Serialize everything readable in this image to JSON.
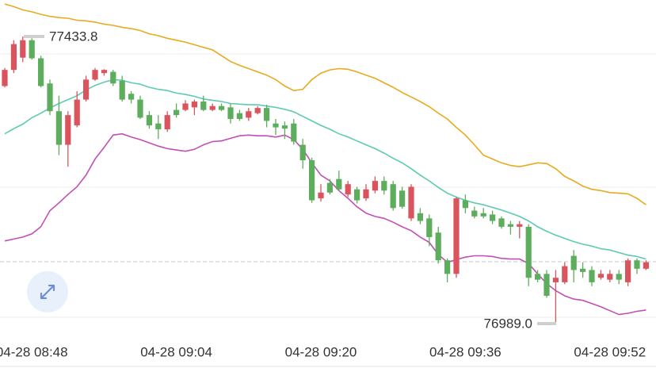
{
  "chart_data": {
    "type": "candlestick",
    "ylim": [
      76920.2,
      77490.3
    ],
    "up_color": "#d9545c",
    "down_color": "#5cad5c",
    "high_label": "77433.8",
    "low_label": "76989.0",
    "categories": [
      null,
      null,
      null,
      "04-28 08:48",
      null,
      null,
      null,
      null,
      null,
      null,
      null,
      null,
      null,
      null,
      null,
      null,
      null,
      null,
      null,
      "04-28 09:04",
      null,
      null,
      null,
      null,
      null,
      null,
      null,
      null,
      null,
      null,
      null,
      null,
      null,
      null,
      null,
      "04-28 09:20",
      null,
      null,
      null,
      null,
      null,
      null,
      null,
      null,
      null,
      null,
      null,
      null,
      null,
      null,
      null,
      "04-28 09:36",
      null,
      null,
      null,
      null,
      null,
      null,
      null,
      null,
      null,
      null,
      null,
      null,
      null,
      null,
      null,
      "04-28 09:52",
      null,
      null,
      null,
      null
    ],
    "open": [
      77357,
      77382,
      77401,
      77428,
      77400,
      77361,
      77318,
      77266,
      77296,
      77336,
      77367,
      77377,
      77379,
      77365,
      77345,
      77336,
      77312,
      77299,
      77290,
      77320,
      77320,
      77324,
      77333,
      77320,
      77326,
      77324,
      77315,
      77308,
      77315,
      77323,
      77299,
      77296,
      77299,
      77266,
      77242,
      77183,
      77207,
      77213,
      77189,
      77197,
      77183,
      77195,
      77210,
      77205,
      77195,
      77152,
      77160,
      77152,
      77130,
      77087,
      77066,
      77180,
      77164,
      77160,
      77158,
      77152,
      77143,
      77139,
      77139,
      77066,
      77066,
      77053,
      77053,
      77094,
      77074,
      77072,
      77060,
      77057,
      77066,
      77053,
      77087,
      77074
    ],
    "close": [
      77382,
      77422,
      77428,
      77400,
      77357,
      77318,
      77266,
      77312,
      77336,
      77367,
      77382,
      77382,
      77361,
      77336,
      77336,
      77308,
      77296,
      77290,
      77312,
      77312,
      77330,
      77333,
      77320,
      77326,
      77320,
      77306,
      77306,
      77318,
      77323,
      77303,
      77293,
      77291,
      77271,
      77242,
      77180,
      77192,
      77192,
      77197,
      77205,
      77180,
      77197,
      77210,
      77195,
      77168,
      77170,
      77201,
      77148,
      77123,
      77087,
      77066,
      77183,
      77168,
      77155,
      77155,
      77148,
      77139,
      77139,
      77143,
      77060,
      77057,
      77032,
      77060,
      77078,
      77072,
      77069,
      77053,
      77066,
      77066,
      77057,
      77087,
      77074,
      77084
    ],
    "high": [
      77385,
      77428,
      77433.8,
      77431,
      77404,
      77367,
      77342,
      77318,
      77349,
      77373,
      77385,
      77383,
      77382,
      77373,
      77349,
      77342,
      77318,
      77312,
      77318,
      77330,
      77335,
      77336,
      77342,
      77330,
      77330,
      77330,
      77320,
      77323,
      77326,
      77328,
      77306,
      77302,
      77306,
      77275,
      77246,
      77205,
      77213,
      77226,
      77210,
      77201,
      77205,
      77217,
      77217,
      77210,
      77201,
      77205,
      77168,
      77158,
      77139,
      77090,
      77185,
      77189,
      77170,
      77168,
      77164,
      77155,
      77148,
      77148,
      77143,
      77072,
      77072,
      77072,
      77084,
      77103,
      77084,
      77078,
      77072,
      77072,
      77072,
      77090,
      77090,
      77087
    ],
    "low": [
      77355,
      77377,
      77394,
      77398,
      77355,
      77312,
      77250,
      77232,
      77293,
      77333,
      77365,
      77373,
      77357,
      77333,
      77330,
      77306,
      77291,
      77275,
      77286,
      77308,
      77318,
      77312,
      77318,
      77318,
      77318,
      77299,
      77303,
      77303,
      77313,
      77293,
      77281,
      77275,
      77266,
      77229,
      77176,
      77178,
      77189,
      77195,
      77185,
      77175,
      77179,
      77191,
      77189,
      77164,
      77167,
      77148,
      77143,
      77109,
      77082,
      77053,
      77060,
      77160,
      77152,
      77152,
      77143,
      77136,
      77127,
      77121,
      77047,
      77053,
      77029,
      76989.0,
      77050,
      77053,
      77060,
      77047,
      77057,
      77053,
      77050,
      77047,
      77066,
      77072
    ],
    "bands": [
      {
        "color": "#e8ab1e",
        "values": [
          77484,
          77480,
          77475,
          77472,
          77468,
          77465,
          77463,
          77462,
          77459,
          77458,
          77456,
          77453,
          77451,
          77448,
          77446,
          77443,
          77438,
          77435,
          77431,
          77428,
          77425,
          77421,
          77417,
          77413,
          77404,
          77395,
          77389,
          77384,
          77379,
          77374,
          77367,
          77357,
          77350,
          77352,
          77367,
          77377,
          77382,
          77384,
          77383,
          77379,
          77374,
          77369,
          77362,
          77355,
          77347,
          77340,
          77333,
          77325,
          77315,
          77306,
          77293,
          77281,
          77266,
          77250,
          77244,
          77238,
          77234,
          77232,
          77235,
          77238,
          77237,
          77229,
          77217,
          77210,
          77202,
          77197,
          77195,
          77192,
          77191,
          77190,
          77183,
          77173
        ]
      },
      {
        "color": "#5ccbb2",
        "values": [
          77283,
          77291,
          77298,
          77308,
          77315,
          77323,
          77330,
          77336,
          77342,
          77351,
          77358,
          77363,
          77367,
          77366,
          77362,
          77360,
          77355,
          77352,
          77350,
          77346,
          77344,
          77341,
          77337,
          77335,
          77333,
          77330,
          77329,
          77328,
          77328,
          77326,
          77324,
          77321,
          77317,
          77310,
          77303,
          77296,
          77290,
          77283,
          77278,
          77272,
          77266,
          77260,
          77253,
          77245,
          77238,
          77229,
          77219,
          77210,
          77200,
          77191,
          77185,
          77180,
          77176,
          77173,
          77169,
          77165,
          77160,
          77155,
          77148,
          77139,
          77132,
          77126,
          77121,
          77116,
          77112,
          77109,
          77105,
          77103,
          77099,
          77095,
          77093,
          77089
        ]
      },
      {
        "color": "#c24fb5",
        "values": [
          77117,
          77120,
          77123,
          77128,
          77139,
          77164,
          77176,
          77189,
          77201,
          77219,
          77244,
          77262,
          77281,
          77283,
          77278,
          77274,
          77269,
          77264,
          77260,
          77258,
          77256,
          77259,
          77266,
          77271,
          77272,
          77276,
          77280,
          77281,
          77280,
          77280,
          77278,
          77281,
          77274,
          77259,
          77238,
          77219,
          77210,
          77195,
          77183,
          77170,
          77160,
          77155,
          77152,
          77146,
          77139,
          77133,
          77123,
          77115,
          77096,
          77084,
          77088,
          77092,
          77094,
          77094,
          77093,
          77090,
          77089,
          77089,
          77082,
          77066,
          77051,
          77040,
          77032,
          77027,
          77025,
          77020,
          77015,
          77009,
          77003,
          77005,
          77008,
          77010
        ]
      }
    ]
  }
}
